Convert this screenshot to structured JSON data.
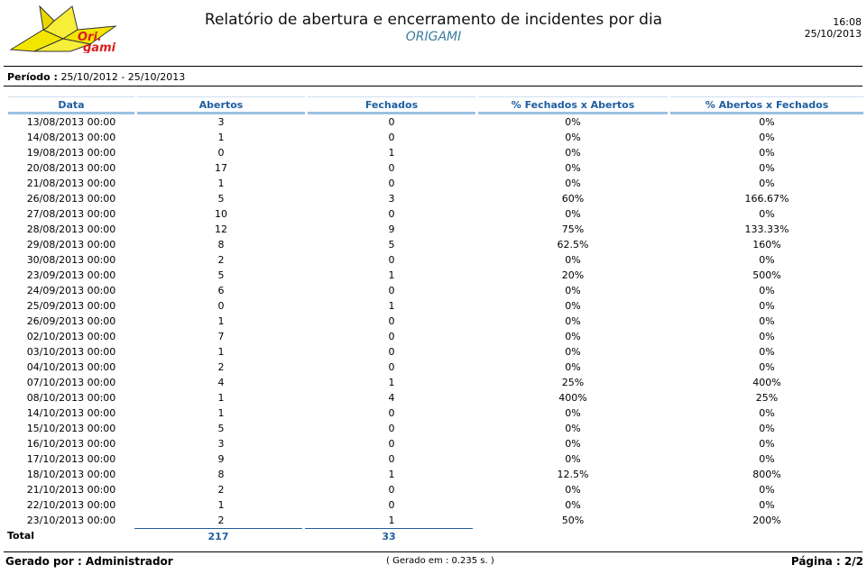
{
  "header": {
    "logo_text": "Ori.\ngami",
    "title": "Relatório de abertura e encerramento de incidentes por dia",
    "subtitle": "ORIGAMI",
    "time": "16:08",
    "date": "25/10/2013"
  },
  "period": {
    "label": "Período :",
    "value": "25/10/2012 - 25/10/2013"
  },
  "table": {
    "columns": [
      "Data",
      "Abertos",
      "Fechados",
      "% Fechados x Abertos",
      "% Abertos x Fechados"
    ],
    "rows": [
      [
        "13/08/2013 00:00",
        "3",
        "0",
        "0%",
        "0%"
      ],
      [
        "14/08/2013 00:00",
        "1",
        "0",
        "0%",
        "0%"
      ],
      [
        "19/08/2013 00:00",
        "0",
        "1",
        "0%",
        "0%"
      ],
      [
        "20/08/2013 00:00",
        "17",
        "0",
        "0%",
        "0%"
      ],
      [
        "21/08/2013 00:00",
        "1",
        "0",
        "0%",
        "0%"
      ],
      [
        "26/08/2013 00:00",
        "5",
        "3",
        "60%",
        "166.67%"
      ],
      [
        "27/08/2013 00:00",
        "10",
        "0",
        "0%",
        "0%"
      ],
      [
        "28/08/2013 00:00",
        "12",
        "9",
        "75%",
        "133.33%"
      ],
      [
        "29/08/2013 00:00",
        "8",
        "5",
        "62.5%",
        "160%"
      ],
      [
        "30/08/2013 00:00",
        "2",
        "0",
        "0%",
        "0%"
      ],
      [
        "23/09/2013 00:00",
        "5",
        "1",
        "20%",
        "500%"
      ],
      [
        "24/09/2013 00:00",
        "6",
        "0",
        "0%",
        "0%"
      ],
      [
        "25/09/2013 00:00",
        "0",
        "1",
        "0%",
        "0%"
      ],
      [
        "26/09/2013 00:00",
        "1",
        "0",
        "0%",
        "0%"
      ],
      [
        "02/10/2013 00:00",
        "7",
        "0",
        "0%",
        "0%"
      ],
      [
        "03/10/2013 00:00",
        "1",
        "0",
        "0%",
        "0%"
      ],
      [
        "04/10/2013 00:00",
        "2",
        "0",
        "0%",
        "0%"
      ],
      [
        "07/10/2013 00:00",
        "4",
        "1",
        "25%",
        "400%"
      ],
      [
        "08/10/2013 00:00",
        "1",
        "4",
        "400%",
        "25%"
      ],
      [
        "14/10/2013 00:00",
        "1",
        "0",
        "0%",
        "0%"
      ],
      [
        "15/10/2013 00:00",
        "5",
        "0",
        "0%",
        "0%"
      ],
      [
        "16/10/2013 00:00",
        "3",
        "0",
        "0%",
        "0%"
      ],
      [
        "17/10/2013 00:00",
        "9",
        "0",
        "0%",
        "0%"
      ],
      [
        "18/10/2013 00:00",
        "8",
        "1",
        "12.5%",
        "800%"
      ],
      [
        "21/10/2013 00:00",
        "2",
        "0",
        "0%",
        "0%"
      ],
      [
        "22/10/2013 00:00",
        "1",
        "0",
        "0%",
        "0%"
      ],
      [
        "23/10/2013 00:00",
        "2",
        "1",
        "50%",
        "200%"
      ]
    ],
    "total_label": "Total",
    "total_abertos": "217",
    "total_fechados": "33"
  },
  "footer": {
    "generated_by": "Gerado por : Administrador",
    "generated_time": "( Gerado em : 0.235 s. )",
    "page": "Página : 2/2"
  },
  "colors": {
    "header_text": "#1f5fa0",
    "header_border": "#9bc0e3",
    "subtitle": "#3a7c9c",
    "logo_fill": "#f2e600",
    "logo_text": "#d9201e"
  }
}
